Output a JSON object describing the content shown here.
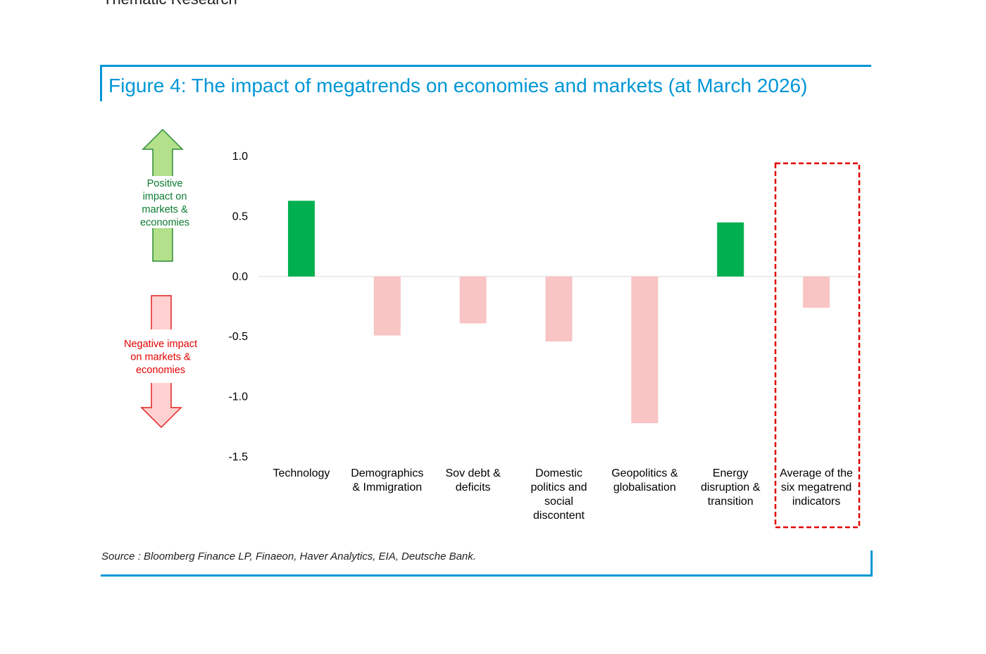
{
  "header": {
    "section": "Thematic Research"
  },
  "figure": {
    "title": "Figure 4: The impact of megatrends on economies and markets (at March 2026)",
    "source": "Source : Bloomberg Finance LP, Finaeon, Haver Analytics, EIA, Deutsche Bank."
  },
  "legend_arrows": {
    "positive": [
      "Positive",
      "impact on",
      "markets &",
      "economies"
    ],
    "negative": [
      "Negative impact",
      "on markets &",
      "economies"
    ]
  },
  "colors": {
    "positive_bar": "#00b050",
    "negative_bar": "#f8c4c4",
    "title_blue": "#0096d6",
    "highlight_box": "#e00000",
    "positive_arrow_fill": "#b3e08a",
    "positive_arrow_stroke": "#2e8b3a",
    "negative_arrow_fill": "#ffd0d0",
    "negative_arrow_stroke": "#e02020"
  },
  "chart_data": {
    "type": "bar",
    "categories": [
      [
        "Technology"
      ],
      [
        "Demographics",
        "& Immigration"
      ],
      [
        "Sov debt &",
        "deficits"
      ],
      [
        "Domestic",
        "politics and",
        "social",
        "discontent"
      ],
      [
        "Geopolitics &",
        "globalisation"
      ],
      [
        "Energy",
        "disruption &",
        "transition"
      ],
      [
        "Average of the",
        "six megatrend",
        "indicators"
      ]
    ],
    "values": [
      0.63,
      -0.49,
      -0.39,
      -0.54,
      -1.22,
      0.45,
      -0.26
    ],
    "ylim": [
      -1.5,
      1.0
    ],
    "yticks": [
      "1.0",
      "0.5",
      "0.0",
      "-0.5",
      "-1.0",
      "-1.5"
    ],
    "highlighted_category": "Average of the six megatrend indicators",
    "grid": false,
    "legend": "none"
  }
}
